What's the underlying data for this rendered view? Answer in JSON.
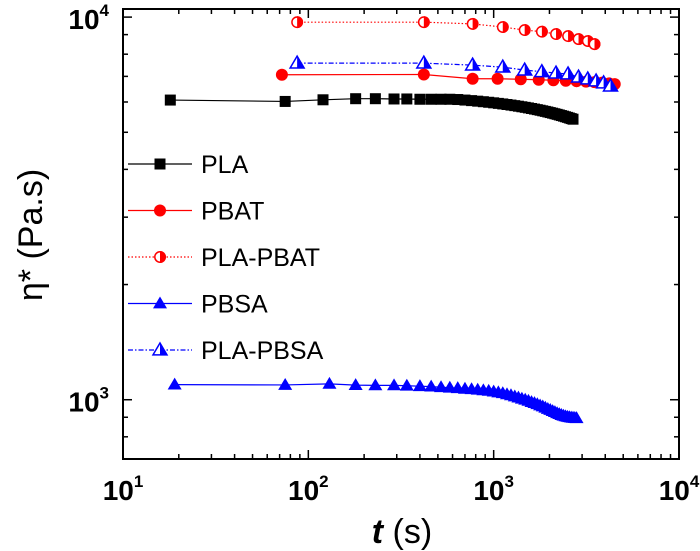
{
  "chart_data": {
    "type": "scatter",
    "xlabel": {
      "italic": "t",
      "rest": " (s)"
    },
    "ylabel": "η* (Pa.s)",
    "x_scale": "log",
    "y_scale": "log",
    "xlim": [
      10,
      10000
    ],
    "ylim": [
      700,
      10500
    ],
    "x_ticks": [
      {
        "value": 10,
        "base": "10",
        "exp": "1"
      },
      {
        "value": 100,
        "base": "10",
        "exp": "2"
      },
      {
        "value": 1000,
        "base": "10",
        "exp": "3"
      },
      {
        "value": 10000,
        "base": "10",
        "exp": "4"
      }
    ],
    "y_ticks": [
      {
        "value": 1000,
        "base": "10",
        "exp": "3"
      },
      {
        "value": 10000,
        "base": "10",
        "exp": "4"
      }
    ],
    "grid": false,
    "legend_position": "middle-left",
    "series": [
      {
        "name": "PLA",
        "color": "#000000",
        "marker": "square",
        "fill": "full",
        "line": "solid",
        "x": [
          18,
          75,
          120,
          180,
          230,
          290,
          340,
          400,
          460,
          520,
          580,
          640,
          700,
          760,
          820,
          880,
          940,
          1000,
          1060,
          1120,
          1180,
          1240,
          1300,
          1360,
          1420,
          1480,
          1540,
          1600,
          1660,
          1720,
          1780,
          1840,
          1900,
          1960,
          2020,
          2080,
          2140,
          2200,
          2260,
          2320,
          2380,
          2440,
          2500,
          2560,
          2620,
          2680
        ],
        "y": [
          6070,
          6020,
          6080,
          6120,
          6120,
          6110,
          6110,
          6100,
          6100,
          6100,
          6100,
          6090,
          6070,
          6050,
          6030,
          6010,
          5990,
          5970,
          5950,
          5930,
          5910,
          5890,
          5870,
          5850,
          5830,
          5810,
          5790,
          5770,
          5750,
          5730,
          5710,
          5690,
          5670,
          5650,
          5630,
          5610,
          5590,
          5570,
          5550,
          5530,
          5510,
          5490,
          5470,
          5450,
          5430,
          5410
        ]
      },
      {
        "name": "PBAT",
        "color": "#ff0000",
        "marker": "circle",
        "fill": "full",
        "line": "solid",
        "x": [
          72,
          420,
          770,
          1050,
          1400,
          1750,
          2100,
          2450,
          2800,
          3150,
          3500,
          3850,
          4200,
          4500
        ],
        "y": [
          7070,
          7080,
          6900,
          6900,
          6880,
          6860,
          6840,
          6820,
          6800,
          6780,
          6760,
          6740,
          6710,
          6680
        ]
      },
      {
        "name": "PLA-PBAT",
        "color": "#ff0000",
        "marker": "circle",
        "fill": "half",
        "line": "dotted",
        "x": [
          87,
          420,
          770,
          1120,
          1470,
          1820,
          2170,
          2520,
          2870,
          3220,
          3500
        ],
        "y": [
          9700,
          9700,
          9600,
          9420,
          9250,
          9160,
          9030,
          8920,
          8760,
          8660,
          8500
        ]
      },
      {
        "name": "PBSA",
        "color": "#0000ff",
        "marker": "triangle",
        "fill": "full",
        "line": "solid",
        "x": [
          19,
          75,
          130,
          180,
          230,
          290,
          340,
          400,
          460,
          520,
          580,
          640,
          700,
          760,
          820,
          880,
          940,
          1000,
          1060,
          1120,
          1180,
          1240,
          1300,
          1360,
          1420,
          1480,
          1540,
          1600,
          1660,
          1720,
          1780,
          1840,
          1900,
          1960,
          2020,
          2080,
          2140,
          2200,
          2260,
          2320,
          2380,
          2440,
          2500,
          2560,
          2620,
          2680,
          2740,
          2800
        ],
        "y": [
          1095,
          1093,
          1100,
          1092,
          1090,
          1090,
          1088,
          1085,
          1082,
          1078,
          1075,
          1072,
          1068,
          1065,
          1062,
          1058,
          1055,
          1050,
          1045,
          1040,
          1033,
          1027,
          1020,
          1013,
          1006,
          1000,
          993,
          986,
          980,
          973,
          966,
          960,
          953,
          946,
          940,
          934,
          928,
          922,
          917,
          912,
          908,
          905,
          902,
          900,
          898,
          897,
          896,
          895
        ]
      },
      {
        "name": "PLA-PBSA",
        "color": "#0000ff",
        "marker": "triangle",
        "fill": "half",
        "line": "dashdot",
        "x": [
          87,
          420,
          770,
          1120,
          1470,
          1820,
          2170,
          2520,
          2870,
          3220,
          3570,
          3920,
          4270
        ],
        "y": [
          7580,
          7580,
          7490,
          7400,
          7270,
          7200,
          7140,
          7100,
          6970,
          6890,
          6810,
          6730,
          6600
        ]
      }
    ]
  }
}
